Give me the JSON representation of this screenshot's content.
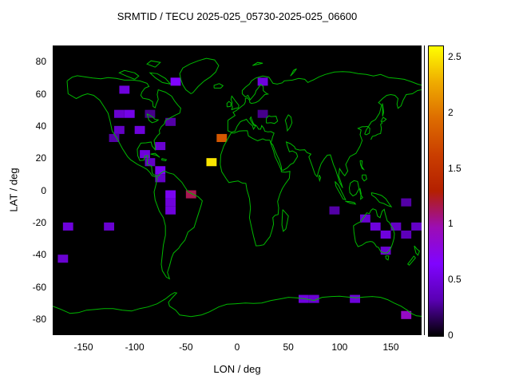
{
  "title": "SRMTID / TECU 2025-025_05730-2025-025_06600",
  "axes": {
    "x_label": "LON / deg",
    "y_label": "LAT / deg",
    "x_tick_labels": [
      "-150",
      "-100",
      "-50",
      "0",
      "50",
      "100",
      "150"
    ],
    "x_tick_values": [
      -150,
      -100,
      -50,
      0,
      50,
      100,
      150
    ],
    "y_tick_labels": [
      "80",
      "60",
      "40",
      "20",
      "0",
      "-20",
      "-40",
      "-60",
      "-80"
    ],
    "y_tick_values": [
      80,
      60,
      40,
      20,
      0,
      -20,
      -40,
      -60,
      -80
    ],
    "x_range": [
      -180,
      180
    ],
    "y_range": [
      -90,
      90
    ]
  },
  "colorbar": {
    "tick_labels": [
      "0",
      "0.5",
      "1",
      "1.5",
      "2",
      "2.5"
    ],
    "tick_values": [
      0,
      0.5,
      1,
      1.5,
      2,
      2.5
    ],
    "range": [
      0,
      2.6
    ],
    "gradient_stops": [
      [
        0.0,
        "#000000"
      ],
      [
        0.125,
        "#5a00b4"
      ],
      [
        0.25,
        "#8004ff"
      ],
      [
        0.375,
        "#9c0db4"
      ],
      [
        0.5,
        "#b42000"
      ],
      [
        0.625,
        "#ca3e00"
      ],
      [
        0.75,
        "#dd6c00"
      ],
      [
        0.875,
        "#efab00"
      ],
      [
        1.0,
        "#ffff00"
      ]
    ]
  },
  "colors": {
    "background": "#ffffff",
    "plot_background": "#000000",
    "coastline": "#00b800",
    "text": "#000000",
    "border": "#000000"
  },
  "chart_data": {
    "type": "heatmap",
    "title": "SRMTID / TECU 2025-025_05730-2025-025_06600",
    "xlabel": "LON / deg",
    "ylabel": "LAT / deg",
    "xlim": [
      -180,
      180
    ],
    "ylim": [
      -90,
      90
    ],
    "colorbar_range": [
      0,
      2.6
    ],
    "cell_size_deg": [
      10,
      5
    ],
    "cells_format": [
      "lon_center",
      "lat_center",
      "tecu_value"
    ],
    "cells": [
      [
        -110,
        62.5,
        0.5
      ],
      [
        -60,
        67.5,
        0.65
      ],
      [
        25,
        67.5,
        0.5
      ],
      [
        -115,
        47.5,
        0.45
      ],
      [
        -105,
        47.5,
        0.55
      ],
      [
        -115,
        37.5,
        0.4
      ],
      [
        -95,
        37.5,
        0.5
      ],
      [
        -120,
        32.5,
        0.3
      ],
      [
        -85,
        47.5,
        0.25
      ],
      [
        -65,
        42.5,
        0.3
      ],
      [
        25,
        47.5,
        0.25
      ],
      [
        -15,
        32.5,
        1.8
      ],
      [
        -25,
        17.5,
        2.5
      ],
      [
        -90,
        22.5,
        0.5
      ],
      [
        -75,
        27.5,
        0.45
      ],
      [
        -85,
        17.5,
        0.4
      ],
      [
        -75,
        12.5,
        0.6
      ],
      [
        -75,
        7.5,
        0.4
      ],
      [
        -65,
        -2.5,
        0.6
      ],
      [
        -45,
        -2.5,
        1.15
      ],
      [
        -65,
        -7.5,
        0.5
      ],
      [
        -65,
        -12.5,
        0.5
      ],
      [
        -165,
        -22.5,
        0.5
      ],
      [
        -125,
        -22.5,
        0.45
      ],
      [
        95,
        -12.5,
        0.3
      ],
      [
        125,
        -17.5,
        0.45
      ],
      [
        135,
        -22.5,
        0.5
      ],
      [
        145,
        -27.5,
        0.5
      ],
      [
        155,
        -22.5,
        0.4
      ],
      [
        165,
        -27.5,
        0.35
      ],
      [
        165,
        -7.5,
        0.3
      ],
      [
        175,
        -22.5,
        0.4
      ],
      [
        -170,
        -42.5,
        0.45
      ],
      [
        145,
        -37.5,
        0.45
      ],
      [
        65,
        -67.5,
        0.5
      ],
      [
        75,
        -67.5,
        0.45
      ],
      [
        115,
        -67.5,
        0.5
      ],
      [
        165,
        -77.5,
        0.9
      ]
    ]
  }
}
